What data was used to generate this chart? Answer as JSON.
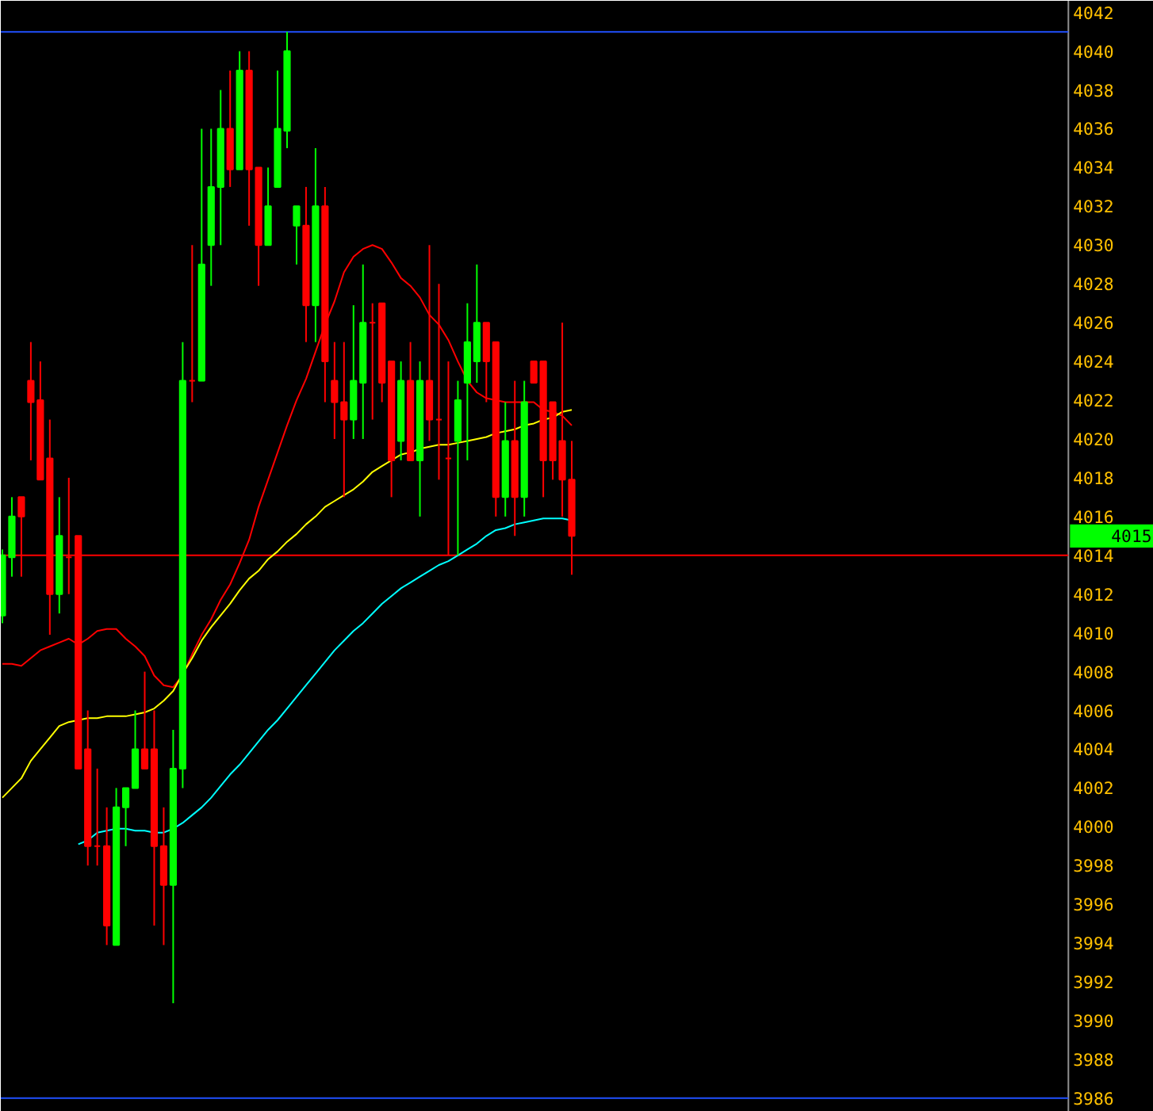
{
  "chart_data": {
    "type": "candlestick",
    "categories": [
      null,
      null,
      null,
      null,
      null,
      null,
      null,
      null,
      null,
      null,
      null,
      null,
      null,
      null,
      null,
      null,
      null,
      null,
      null,
      null,
      null,
      null,
      null,
      null,
      null,
      null,
      null,
      null,
      null,
      null,
      null,
      null,
      null,
      null,
      null,
      null,
      null,
      null,
      null,
      null,
      null,
      null,
      null,
      null,
      null,
      null,
      null,
      null,
      null,
      null,
      null,
      null,
      null,
      null,
      null,
      null,
      null,
      null,
      null,
      null,
      null
    ],
    "ohlc": [
      [
        4010.9,
        4014.3,
        4010.5,
        4014.0
      ],
      [
        4013.9,
        4017.0,
        4012.9,
        4016.0
      ],
      [
        4017.0,
        4017.0,
        4012.9,
        4016.0
      ],
      [
        4023.0,
        4025.0,
        4018.9,
        4021.9
      ],
      [
        4022.0,
        4024.0,
        4017.9,
        4017.9
      ],
      [
        4019.0,
        4021.0,
        4009.9,
        4012.0
      ],
      [
        4012.0,
        4017.0,
        4011.0,
        4015.0
      ],
      [
        4013.9,
        4018.0,
        4012.0,
        4013.9
      ],
      [
        4015.0,
        4015.0,
        4003.0,
        4003.0
      ],
      [
        4004.0,
        4006.0,
        3998.0,
        3999.0
      ],
      [
        3999.0,
        4003.0,
        3998.0,
        3999.0
      ],
      [
        3999.0,
        4001.0,
        3993.9,
        3994.9
      ],
      [
        3993.9,
        4002.0,
        3993.9,
        4001.0
      ],
      [
        4001.0,
        4002.0,
        3999.0,
        4002.0
      ],
      [
        4002.0,
        4006.0,
        4002.0,
        4004.0
      ],
      [
        4004.0,
        4008.0,
        4003.0,
        4003.0
      ],
      [
        4004.0,
        4006.0,
        3994.9,
        3999.0
      ],
      [
        3999.0,
        4001.0,
        3993.9,
        3997.0
      ],
      [
        3997.0,
        4005.0,
        3990.9,
        4003.0
      ],
      [
        4003.0,
        4025.0,
        4002.0,
        4023.0
      ],
      [
        4023.0,
        4030.0,
        4021.9,
        4023.0
      ],
      [
        4023.0,
        4036.0,
        4023.0,
        4029.0
      ],
      [
        4030.0,
        4036.0,
        4027.9,
        4033.0
      ],
      [
        4033.0,
        4038.0,
        4030.0,
        4036.0
      ],
      [
        4036.0,
        4039.0,
        4033.0,
        4033.9
      ],
      [
        4033.9,
        4040.0,
        4033.9,
        4039.0
      ],
      [
        4039.0,
        4040.0,
        4031.0,
        4033.9
      ],
      [
        4034.0,
        4034.0,
        4027.9,
        4030.0
      ],
      [
        4030.0,
        4034.0,
        4030.0,
        4032.0
      ],
      [
        4033.0,
        4039.0,
        4033.0,
        4036.0
      ],
      [
        4035.9,
        4041.0,
        4035.0,
        4040.0
      ],
      [
        4031.0,
        4032.0,
        4029.0,
        4032.0
      ],
      [
        4031.0,
        4033.0,
        4025.0,
        4026.9
      ],
      [
        4026.9,
        4035.0,
        4025.0,
        4032.0
      ],
      [
        4032.0,
        4033.0,
        4021.9,
        4024.0
      ],
      [
        4023.0,
        4025.0,
        4020.0,
        4021.9
      ],
      [
        4021.9,
        4025.0,
        4017.0,
        4021.0
      ],
      [
        4021.0,
        4026.9,
        4020.0,
        4023.0
      ],
      [
        4022.9,
        4029.0,
        4020.0,
        4026.0
      ],
      [
        4026.0,
        4027.0,
        4021.0,
        4026.0
      ],
      [
        4027.0,
        4027.0,
        4021.9,
        4022.9
      ],
      [
        4024.0,
        4024.0,
        4017.0,
        4018.9
      ],
      [
        4019.9,
        4024.0,
        4018.9,
        4023.0
      ],
      [
        4023.0,
        4025.0,
        4018.9,
        4018.9
      ],
      [
        4018.9,
        4024.0,
        4016.0,
        4023.0
      ],
      [
        4023.0,
        4030.0,
        4019.9,
        4021.0
      ],
      [
        4021.0,
        4028.0,
        4017.9,
        4021.0
      ],
      [
        4019.0,
        4024.0,
        4014.0,
        4019.0
      ],
      [
        4019.9,
        4023.0,
        4014.0,
        4022.0
      ],
      [
        4022.9,
        4027.0,
        4018.9,
        4025.0
      ],
      [
        4024.0,
        4029.0,
        4022.9,
        4026.0
      ],
      [
        4026.0,
        4026.0,
        4021.9,
        4024.0
      ],
      [
        4025.0,
        4025.0,
        4016.0,
        4017.0
      ],
      [
        4017.0,
        4021.9,
        4016.0,
        4019.9
      ],
      [
        4019.9,
        4023.0,
        4015.0,
        4017.0
      ],
      [
        4017.0,
        4023.0,
        4016.0,
        4021.9
      ],
      [
        4024.0,
        4024.0,
        4022.9,
        4022.9
      ],
      [
        4024.0,
        4024.0,
        4017.0,
        4018.9
      ],
      [
        4021.9,
        4021.9,
        4017.9,
        4018.9
      ],
      [
        4019.9,
        4026.0,
        4016.0,
        4017.9
      ],
      [
        4017.9,
        4019.9,
        4013.0,
        4015.0
      ]
    ],
    "colors": [
      "#00ff00",
      "#00ff00",
      "#ff0000",
      "#ff0000",
      "#ff0000",
      "#ff0000",
      "#00ff00",
      "#ff0000",
      "#ff0000",
      "#ff0000",
      "#ff0000",
      "#ff0000",
      "#00ff00",
      "#00ff00",
      "#00ff00",
      "#ff0000",
      "#ff0000",
      "#ff0000",
      "#00ff00",
      "#00ff00",
      "#ff0000",
      "#00ff00",
      "#00ff00",
      "#00ff00",
      "#ff0000",
      "#00ff00",
      "#ff0000",
      "#ff0000",
      "#00ff00",
      "#00ff00",
      "#00ff00",
      "#00ff00",
      "#ff0000",
      "#00ff00",
      "#ff0000",
      "#ff0000",
      "#ff0000",
      "#00ff00",
      "#00ff00",
      "#ff0000",
      "#ff0000",
      "#ff0000",
      "#00ff00",
      "#ff0000",
      "#00ff00",
      "#ff0000",
      "#ff0000",
      "#ff0000",
      "#00ff00",
      "#00ff00",
      "#00ff00",
      "#ff0000",
      "#ff0000",
      "#00ff00",
      "#ff0000",
      "#00ff00",
      "#ff0000",
      "#ff0000",
      "#ff0000",
      "#ff0000",
      "#ff0000"
    ],
    "series": [
      {
        "type": "line",
        "color": "#ff0000",
        "values": [
          4008.4,
          4008.4,
          4008.3,
          4008.7,
          4009.1,
          4009.3,
          4009.5,
          4009.7,
          4009.4,
          4009.7,
          4010.1,
          4010.2,
          4010.2,
          4009.7,
          4009.3,
          4008.8,
          4007.8,
          4007.3,
          4007.2,
          4007.8,
          4008.9,
          4009.9,
          4010.7,
          4011.7,
          4012.5,
          4013.6,
          4014.8,
          4016.5,
          4017.9,
          4019.3,
          4020.7,
          4022.0,
          4023.1,
          4024.5,
          4025.9,
          4027.1,
          4028.6,
          4029.4,
          4029.8,
          4030.0,
          4029.8,
          4029.1,
          4028.3,
          4027.9,
          4027.3,
          4026.4,
          4025.9,
          4025.1,
          4024.0,
          4023.0,
          4022.4,
          4022.1,
          4022.0,
          4021.9,
          4021.9,
          4021.9,
          4021.9,
          4021.5,
          4021.4,
          4021.2,
          4020.7
        ]
      },
      {
        "type": "line",
        "color": "#ffff00",
        "values": [
          4001.5,
          4002.0,
          4002.5,
          4003.4,
          4004.0,
          4004.6,
          4005.2,
          4005.4,
          4005.5,
          4005.6,
          4005.6,
          4005.7,
          4005.7,
          4005.7,
          4005.8,
          4005.9,
          4006.1,
          4006.5,
          4007.0,
          4007.9,
          4008.7,
          4009.6,
          4010.3,
          4010.9,
          4011.5,
          4012.2,
          4012.8,
          4013.2,
          4013.8,
          4014.2,
          4014.7,
          4015.1,
          4015.6,
          4016.0,
          4016.5,
          4016.8,
          4017.1,
          4017.4,
          4017.8,
          4018.3,
          4018.6,
          4018.9,
          4019.2,
          4019.3,
          4019.5,
          4019.6,
          4019.7,
          4019.7,
          4019.8,
          4019.9,
          4020.0,
          4020.1,
          4020.3,
          4020.4,
          4020.5,
          4020.7,
          4020.8,
          4021.0,
          4021.1,
          4021.4,
          4021.5
        ]
      },
      {
        "type": "line",
        "color": "#00ffff",
        "values": [
          null,
          null,
          null,
          null,
          null,
          null,
          null,
          null,
          3999.1,
          3999.3,
          3999.7,
          3999.8,
          3999.9,
          3999.9,
          3999.8,
          3999.8,
          3999.7,
          3999.7,
          3999.9,
          4000.2,
          4000.6,
          4001.0,
          4001.5,
          4002.1,
          4002.7,
          4003.2,
          4003.8,
          4004.4,
          4005.0,
          4005.5,
          4006.1,
          4006.7,
          4007.3,
          4007.9,
          4008.5,
          4009.1,
          4009.6,
          4010.1,
          4010.5,
          4011.0,
          4011.5,
          4011.9,
          4012.3,
          4012.6,
          4012.9,
          4013.2,
          4013.5,
          4013.7,
          4014.0,
          4014.3,
          4014.6,
          4015.0,
          4015.3,
          4015.4,
          4015.6,
          4015.7,
          4015.8,
          4015.9,
          4015.9,
          4015.9,
          4015.8
        ]
      }
    ],
    "ylim": [
      3985.3,
      4042.6
    ],
    "yticks": [
      3986,
      3988,
      3990,
      3992,
      3994,
      3996,
      3998,
      4000,
      4002,
      4004,
      4006,
      4008,
      4010,
      4012,
      4014,
      4016,
      4018,
      4020,
      4022,
      4024,
      4026,
      4028,
      4030,
      4032,
      4034,
      4036,
      4038,
      4040,
      4042
    ],
    "tick_labels": "y",
    "grid": false,
    "ref_lines": [
      {
        "axis": "y",
        "value": 4041,
        "color": "#2050ff"
      },
      {
        "axis": "y",
        "value": 4014,
        "color": "#ff0000"
      },
      {
        "axis": "y",
        "value": 3986,
        "color": "#2050ff"
      }
    ],
    "annotations": [
      "4015"
    ]
  }
}
